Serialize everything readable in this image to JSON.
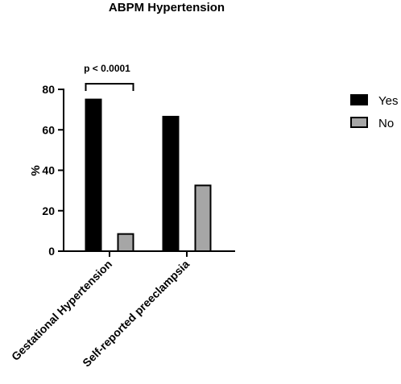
{
  "chart_data": {
    "type": "bar",
    "title": "ABPM Hypertension",
    "xlabel": "",
    "ylabel": "%",
    "ylim": [
      0,
      80
    ],
    "yticks": [
      0,
      20,
      40,
      60,
      80
    ],
    "categories": [
      "Gestational Hypertension",
      "Self-reported preeclampsia"
    ],
    "series": [
      {
        "name": "Yes",
        "values": [
          75,
          66.5
        ],
        "color": "#000000"
      },
      {
        "name": "No",
        "values": [
          8.5,
          32.5
        ],
        "color": "#a6a6a6"
      }
    ],
    "legend_position": "top-right",
    "grid": false,
    "annotation": {
      "text": "p < 0.0001",
      "category_index": 0
    }
  }
}
